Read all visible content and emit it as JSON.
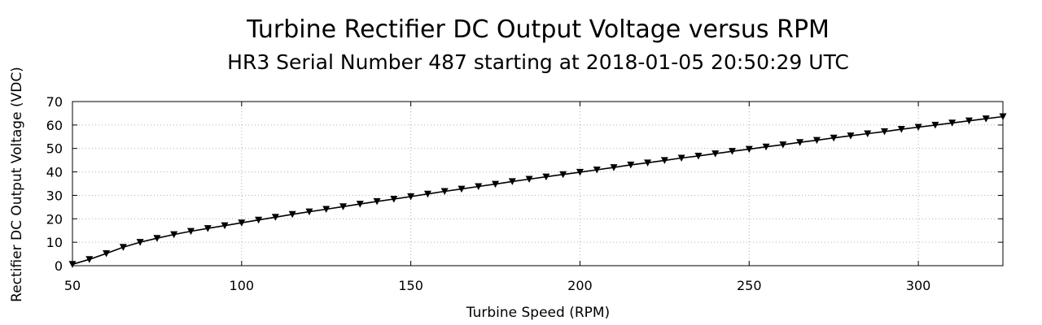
{
  "chart_data": {
    "type": "line",
    "title": "Turbine Rectifier DC Output Voltage versus RPM",
    "subtitle": "HR3 Serial Number 487 starting at 2018-01-05 20:50:29 UTC",
    "xlabel": "Turbine Speed (RPM)",
    "ylabel": "Rectifier DC Output Voltage (VDC)",
    "xlim": [
      50,
      325
    ],
    "ylim": [
      0,
      70
    ],
    "xticks": [
      50,
      100,
      150,
      200,
      250,
      300
    ],
    "yticks": [
      0,
      10,
      20,
      30,
      40,
      50,
      60,
      70
    ],
    "grid": true,
    "marker": "triangle-down",
    "series": [
      {
        "x": [
          50,
          55,
          60,
          65,
          70,
          75,
          80,
          85,
          90,
          95,
          100,
          105,
          110,
          115,
          120,
          125,
          130,
          135,
          140,
          145,
          150,
          155,
          160,
          165,
          170,
          175,
          180,
          185,
          190,
          195,
          200,
          205,
          210,
          215,
          220,
          225,
          230,
          235,
          240,
          245,
          250,
          255,
          260,
          265,
          270,
          275,
          280,
          285,
          290,
          295,
          300,
          305,
          310,
          315,
          320,
          325
        ],
        "values": [
          0.6,
          2.7,
          5.2,
          7.9,
          10.0,
          11.7,
          13.3,
          14.7,
          15.9,
          17.1,
          18.3,
          19.5,
          20.7,
          21.9,
          23.0,
          24.1,
          25.2,
          26.3,
          27.4,
          28.4,
          29.5,
          30.6,
          31.7,
          32.7,
          33.8,
          34.8,
          35.9,
          36.9,
          37.9,
          38.9,
          39.9,
          40.9,
          41.9,
          43.0,
          43.9,
          44.9,
          45.9,
          46.8,
          47.8,
          48.8,
          49.7,
          50.7,
          51.6,
          52.6,
          53.5,
          54.5,
          55.4,
          56.3,
          57.2,
          58.2,
          59.1,
          60.0,
          60.9,
          61.8,
          62.7,
          63.6
        ]
      }
    ]
  }
}
